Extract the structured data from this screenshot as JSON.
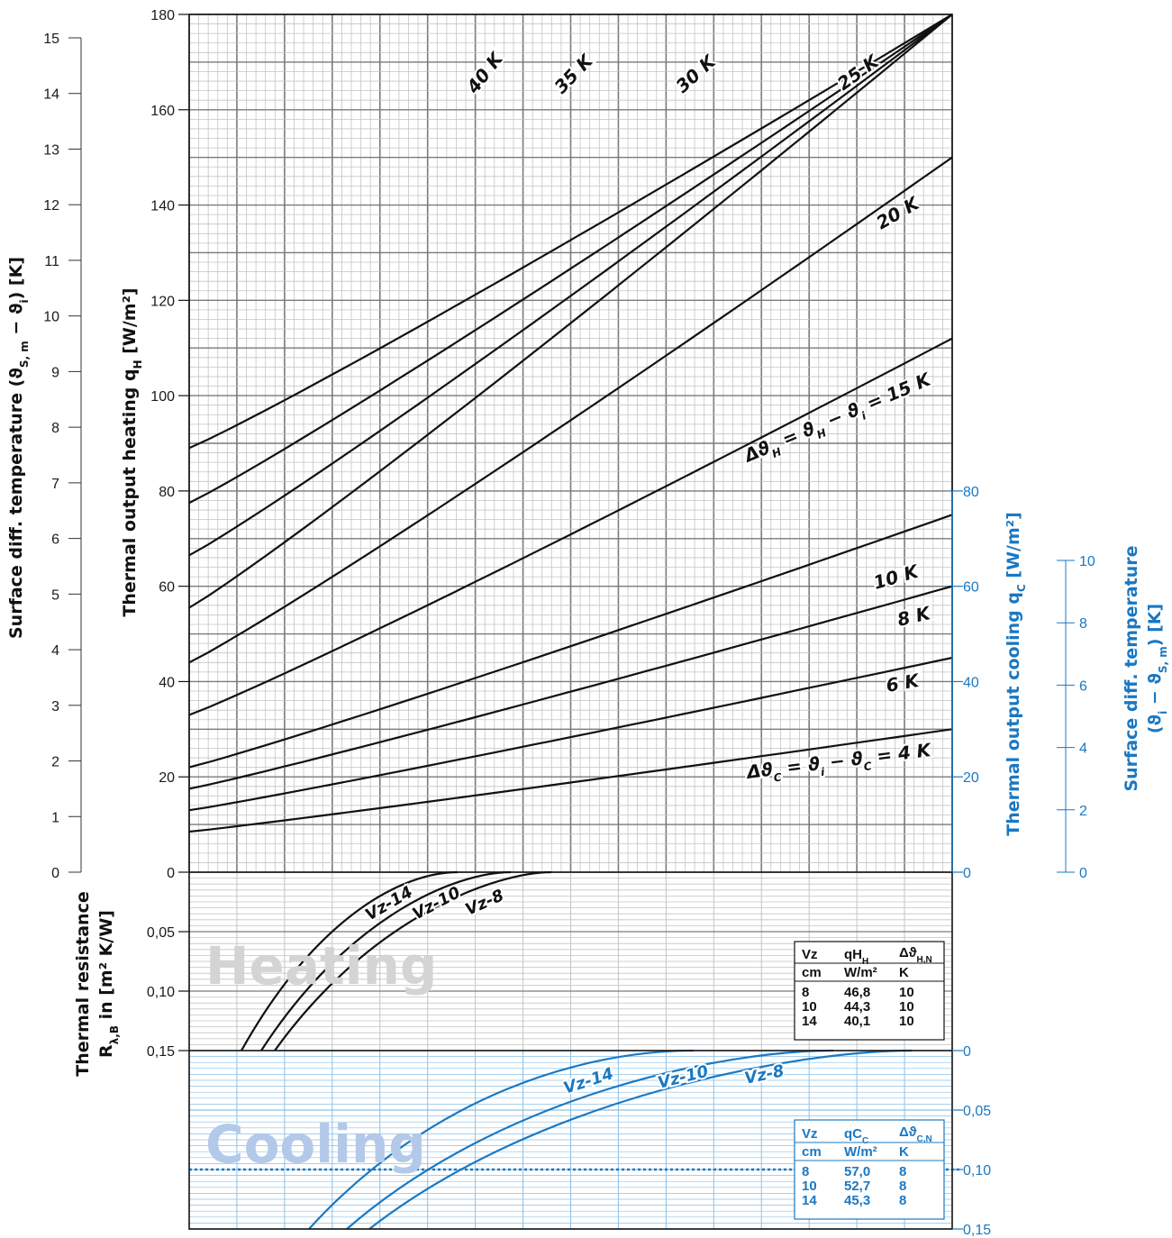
{
  "chart_data": [
    {
      "type": "line",
      "title": "",
      "xlabel": "",
      "left_axis_1": {
        "label": "Surface diff. temperature (ϑS,m − ϑi) [K]",
        "ticks": [
          "0",
          "1",
          "2",
          "3",
          "4",
          "5",
          "6",
          "7",
          "8",
          "9",
          "10",
          "11",
          "12",
          "13",
          "14",
          "15"
        ]
      },
      "left_axis_2": {
        "label": "Thermal output heating qH [W/m²]",
        "ylim": [
          0,
          180
        ],
        "ticks": [
          "0",
          "20",
          "40",
          "60",
          "80",
          "100",
          "120",
          "140",
          "160",
          "180"
        ]
      },
      "right_axis_1": {
        "label": "Thermal output cooling qC [W/m²]",
        "ylim": [
          0,
          80
        ],
        "ticks": [
          "0",
          "20",
          "40",
          "60",
          "80"
        ]
      },
      "right_axis_2": {
        "label": "Surface diff. temperature (ϑi − ϑS,m) [K]",
        "ticks": [
          "0",
          "2",
          "4",
          "6",
          "8",
          "10"
        ]
      },
      "series": [
        {
          "name": "40 K",
          "y_at_left": 89,
          "y_at_right": 180,
          "reaches_top": true
        },
        {
          "name": "35 K",
          "y_at_left": 77.5,
          "y_at_right": 180,
          "reaches_top": true
        },
        {
          "name": "30 K",
          "y_at_left": 66.5,
          "y_at_right": 180,
          "reaches_top": true
        },
        {
          "name": "25 K",
          "y_at_left": 55.5,
          "y_at_right": 180,
          "reaches_top": true
        },
        {
          "name": "20 K",
          "y_at_left": 44,
          "y_at_right": 150
        },
        {
          "name": "Δϑ = ϑ − ϑ = 15 K",
          "y_at_left": 33,
          "y_at_right": 112
        },
        {
          "name": "10 K",
          "y_at_left": 22,
          "y_at_right": 75
        },
        {
          "name": "8 K",
          "y_at_left": 17.5,
          "y_at_right": 60
        },
        {
          "name": "6 K",
          "y_at_left": 13,
          "y_at_right": 45
        },
        {
          "name": "Δϑ = ϑ − ϑ = 4 K",
          "y_at_left": 8.5,
          "y_at_right": 30
        }
      ],
      "curve_labels": {
        "k40": "40 K",
        "k35": "35 K",
        "k30": "30 K",
        "k25": "25 K",
        "k20": "20 K",
        "k15": "Δϑ = ϑ − ϑ = 15 K",
        "k15_main": "Δϑ",
        "k15_sub1": "H",
        "k15_mid": " = ϑ",
        "k15_sub2": "H",
        "k15_mid2": " − ϑ",
        "k15_sub3": "i",
        "k15_end": " = 15 K",
        "k10": "10 K",
        "k8": "8 K",
        "k6": "6 K",
        "k4_main": "Δϑ",
        "k4_sub1": "C",
        "k4_mid": " = ϑ",
        "k4_sub2": "i",
        "k4_mid2": " − ϑ",
        "k4_sub3": "C",
        "k4_end": " = 4 K"
      }
    },
    {
      "type": "line",
      "title": "",
      "panel": "Heating",
      "xlabel": "",
      "ylabel": "Thermal resistance Rλ,B in [m² K/W]",
      "ylim": [
        0,
        0.15
      ],
      "ticks": [
        "0",
        "0,05",
        "0,10",
        "0,15"
      ],
      "series": [
        {
          "name": "Vz-14"
        },
        {
          "name": "Vz-10"
        },
        {
          "name": "Vz-8"
        }
      ],
      "table": {
        "headers": [
          "Vz",
          "qH",
          "Δϑ"
        ],
        "header_sub": [
          "",
          "H",
          "H,N"
        ],
        "units": [
          "cm",
          "W/m²",
          "K"
        ],
        "rows": [
          [
            "8",
            "46,8",
            "10"
          ],
          [
            "10",
            "44,3",
            "10"
          ],
          [
            "14",
            "40,1",
            "10"
          ]
        ]
      }
    },
    {
      "type": "line",
      "title": "",
      "panel": "Cooling",
      "xlabel": "",
      "ylim": [
        0,
        0.15
      ],
      "ticks": [
        "0",
        "0,05",
        "0,10",
        "0,15"
      ],
      "series": [
        {
          "name": "Vz-14"
        },
        {
          "name": "Vz-10"
        },
        {
          "name": "Vz-8"
        }
      ],
      "reference_line": {
        "y": 0.1
      },
      "table": {
        "headers": [
          "Vz",
          "qC",
          "Δϑ"
        ],
        "header_sub": [
          "",
          "C",
          "C,N"
        ],
        "units": [
          "cm",
          "W/m²",
          "K"
        ],
        "rows": [
          [
            "8",
            "57,0",
            "8"
          ],
          [
            "10",
            "52,7",
            "8"
          ],
          [
            "14",
            "45,3",
            "8"
          ]
        ]
      }
    }
  ],
  "labels": {
    "heating_watermark": "Heating",
    "cooling_watermark": "Cooling",
    "left1_title_a": "Surface diff. temperature (ϑ",
    "left1_title_sub1": "S, m",
    "left1_title_b": " − ϑ",
    "left1_title_sub2": "i",
    "left1_title_c": ") [K]",
    "left2_title_a": "Thermal output heating q",
    "left2_title_sub": "H",
    "left2_title_b": " [W/m²]",
    "right1_title_a": "Thermal output cooling q",
    "right1_title_sub": "C",
    "right1_title_b": " [W/m²]",
    "right2_title_line1": "Surface diff. temperature",
    "right2_title_a": "(ϑ",
    "right2_title_sub1": "i",
    "right2_title_b": " − ϑ",
    "right2_title_sub2": "S, m",
    "right2_title_c": ") [K]",
    "res_title_line1": "Thermal resistance",
    "res_title_a": "R",
    "res_title_sub": "λ,B",
    "res_title_b": " in [m² K/W]"
  },
  "colors": {
    "black": "#111111",
    "blue": "#1a78c2",
    "grid_major": "#7a7a7a",
    "grid_minor": "#c4c4c4",
    "grid_blue": "#8cc0e6"
  }
}
